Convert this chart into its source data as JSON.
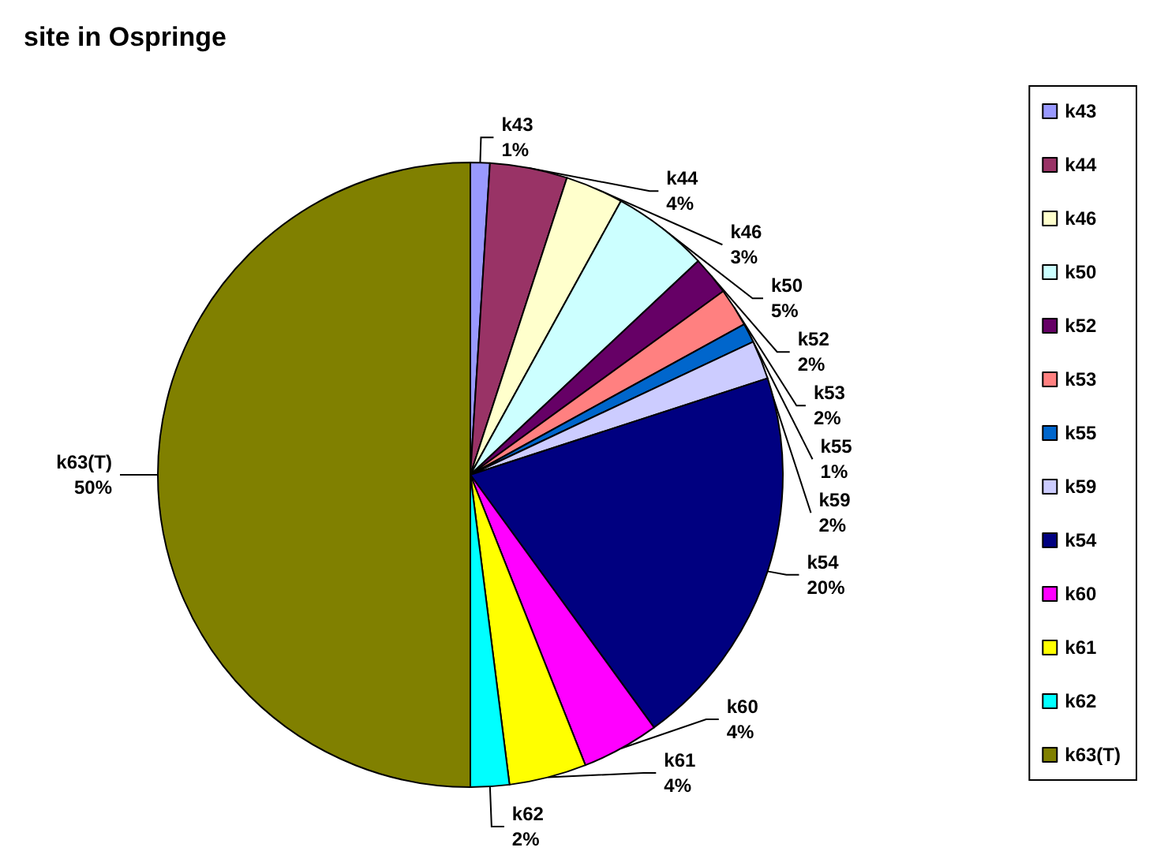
{
  "chart_data": {
    "type": "pie",
    "title": "site in Ospringe",
    "categories": [
      "k43",
      "k44",
      "k46",
      "k50",
      "k52",
      "k53",
      "k55",
      "k59",
      "k54",
      "k60",
      "k61",
      "k62",
      "k63(T)"
    ],
    "values": [
      1,
      4,
      3,
      5,
      2,
      2,
      1,
      2,
      20,
      4,
      4,
      2,
      50
    ],
    "value_labels": [
      "1%",
      "4%",
      "3%",
      "5%",
      "2%",
      "2%",
      "1%",
      "2%",
      "20%",
      "4%",
      "4%",
      "2%",
      "50%"
    ],
    "colors": [
      "#9999ff",
      "#993366",
      "#ffffcc",
      "#ccffff",
      "#660066",
      "#ff8080",
      "#0066cc",
      "#ccccff",
      "#000080",
      "#ff00ff",
      "#ffff00",
      "#00ffff",
      "#808000"
    ],
    "legend": "right"
  }
}
